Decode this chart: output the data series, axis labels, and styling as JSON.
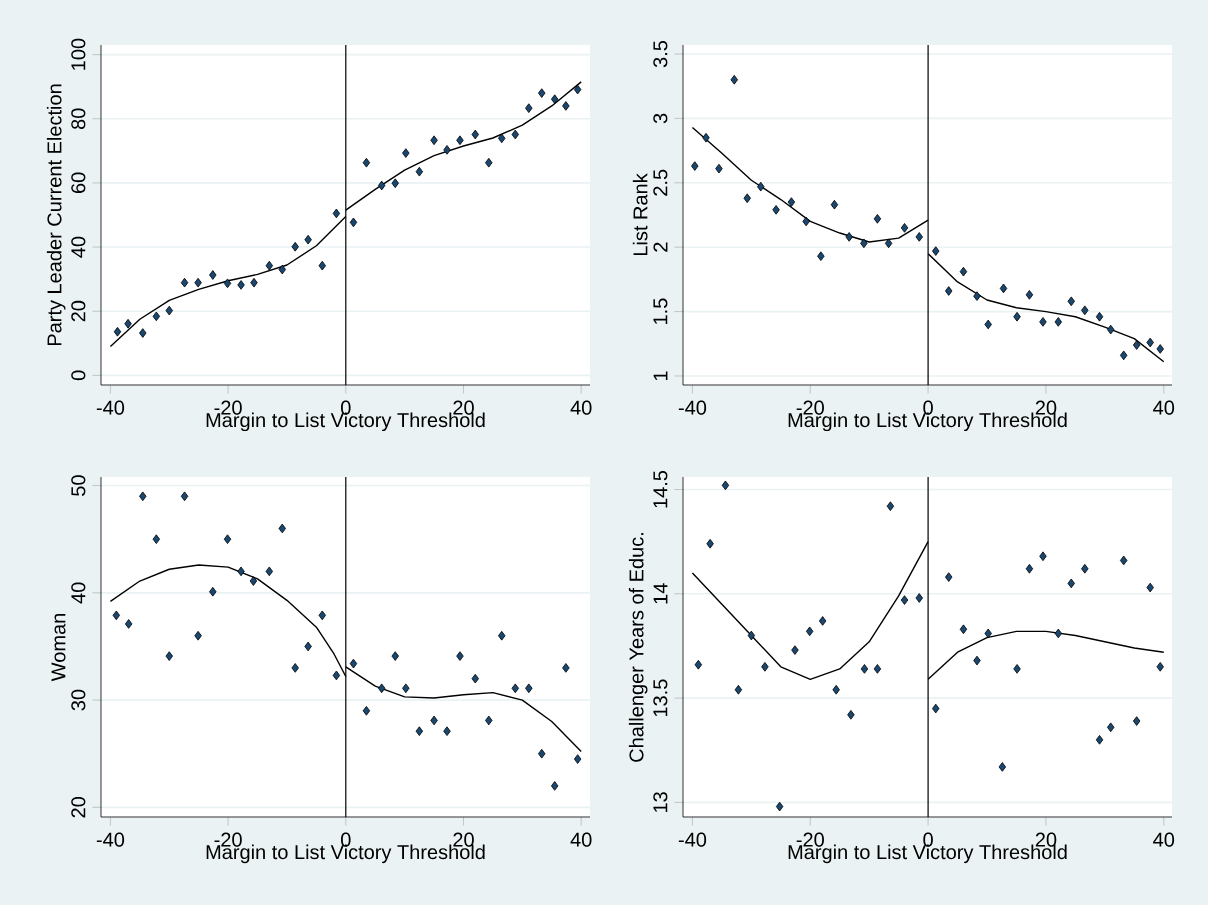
{
  "chart_data": [
    {
      "type": "scatter",
      "xlabel": "Margin to List Victory Threshold",
      "ylabel": "Party Leader Current Election",
      "xlim": [
        -41.6,
        41.5
      ],
      "ylim": [
        -3,
        103
      ],
      "xticks": [
        -40,
        -20,
        0,
        20,
        40
      ],
      "yticks": [
        0,
        20,
        40,
        60,
        80,
        100
      ],
      "grid": "y",
      "ref_lines": [
        {
          "axis": "x",
          "value": 0,
          "color": "#000000"
        }
      ],
      "series": [
        {
          "marker": "diamond",
          "color": "#1a476f",
          "x": [
            -38.8,
            -37,
            -34.5,
            -32.2,
            -30,
            -27.4,
            -25.1,
            -22.6,
            -20.1,
            -17.8,
            -15.6,
            -13,
            -10.8,
            -8.6,
            -6.4,
            -4,
            -1.6,
            1.3,
            3.5,
            6.1,
            8.4,
            10.2,
            12.5,
            15,
            17.2,
            19.4,
            22,
            24.3,
            26.5,
            28.8,
            31.1,
            33.3,
            35.5,
            37.4,
            39.4
          ],
          "values": [
            13.6,
            16.1,
            13.2,
            18.4,
            20.2,
            28.9,
            28.9,
            31.3,
            28.7,
            28.2,
            28.9,
            34.2,
            33,
            40.1,
            42.3,
            34.2,
            50.5,
            47.7,
            66.3,
            59.2,
            59.9,
            69.3,
            63.5,
            73.3,
            70.3,
            73.3,
            75.1,
            66.3,
            73.9,
            75.1,
            83.3,
            88,
            86.1,
            84,
            89.1
          ]
        },
        {
          "type": "line",
          "color": "#000000",
          "x": [
            -40,
            -35,
            -30,
            -25,
            -20,
            -15,
            -10,
            -5,
            0
          ],
          "values": [
            9,
            17.5,
            23.4,
            26.8,
            29.5,
            31.5,
            34.4,
            40.4,
            49.5
          ]
        },
        {
          "type": "line",
          "color": "#000000",
          "x": [
            0,
            5,
            10,
            15,
            20,
            25,
            30,
            35,
            40
          ],
          "values": [
            51.5,
            58,
            64,
            68.5,
            71.5,
            74,
            78,
            84,
            91.5
          ]
        }
      ]
    },
    {
      "type": "scatter",
      "xlabel": "Margin to List Victory Threshold",
      "ylabel": "List Rank",
      "xlim": [
        -41.6,
        41.4
      ],
      "ylim": [
        0.93,
        3.57
      ],
      "xticks": [
        -40,
        -20,
        0,
        20,
        40
      ],
      "yticks": [
        1,
        1.5,
        2,
        2.5,
        3,
        3.5
      ],
      "grid": "y",
      "ref_lines": [
        {
          "axis": "x",
          "value": 0,
          "color": "#000000"
        }
      ],
      "series": [
        {
          "marker": "diamond",
          "color": "#1a476f",
          "x": [
            -39.6,
            -37.7,
            -35.5,
            -32.9,
            -30.7,
            -28.4,
            -25.8,
            -23.2,
            -20.7,
            -18.2,
            -15.9,
            -13.4,
            -10.9,
            -8.6,
            -6.7,
            -4,
            -1.5,
            1.3,
            3.5,
            6,
            8.3,
            10.2,
            12.8,
            15.1,
            17.2,
            19.5,
            22.1,
            24.3,
            26.6,
            29.1,
            31,
            33.2,
            35.4,
            37.7,
            39.4
          ],
          "values": [
            2.63,
            2.85,
            2.61,
            3.3,
            2.38,
            2.47,
            2.29,
            2.35,
            2.2,
            1.93,
            2.33,
            2.08,
            2.03,
            2.22,
            2.03,
            2.15,
            2.08,
            1.97,
            1.66,
            1.81,
            1.62,
            1.4,
            1.68,
            1.46,
            1.63,
            1.42,
            1.42,
            1.58,
            1.51,
            1.46,
            1.36,
            1.16,
            1.24,
            1.26,
            1.21
          ]
        },
        {
          "type": "line",
          "color": "#000000",
          "x": [
            -40,
            -35,
            -30,
            -25,
            -20,
            -15,
            -10,
            -5,
            0
          ],
          "values": [
            2.93,
            2.73,
            2.52,
            2.37,
            2.2,
            2.11,
            2.04,
            2.07,
            2.21
          ]
        },
        {
          "type": "line",
          "color": "#000000",
          "x": [
            0,
            5,
            10,
            15,
            20,
            25,
            30,
            35,
            40
          ],
          "values": [
            1.95,
            1.73,
            1.59,
            1.53,
            1.5,
            1.46,
            1.38,
            1.29,
            1.11
          ]
        }
      ]
    },
    {
      "type": "scatter",
      "xlabel": "Margin to List Victory Threshold",
      "ylabel": "Woman",
      "xlim": [
        -41.6,
        41.5
      ],
      "ylim": [
        19.1,
        50.8
      ],
      "xticks": [
        -40,
        -20,
        0,
        20,
        40
      ],
      "yticks": [
        20,
        30,
        40,
        50
      ],
      "grid": "y",
      "ref_lines": [
        {
          "axis": "x",
          "value": 0,
          "color": "#000000"
        }
      ],
      "series": [
        {
          "marker": "diamond",
          "color": "#1a476f",
          "x": [
            -39,
            -36.9,
            -34.5,
            -32.2,
            -30,
            -27.4,
            -25.1,
            -22.6,
            -20.1,
            -17.8,
            -15.7,
            -13,
            -10.8,
            -8.6,
            -6.4,
            -4,
            -1.6,
            1.3,
            3.5,
            6.1,
            8.4,
            10.2,
            12.5,
            15,
            17.2,
            19.4,
            22,
            24.3,
            26.5,
            28.8,
            31.1,
            33.3,
            35.5,
            37.4,
            39.4
          ],
          "values": [
            37.9,
            37.1,
            49,
            45,
            34.1,
            49,
            36,
            40.1,
            45,
            42,
            41.1,
            42,
            46,
            33,
            35,
            37.9,
            32.3,
            33.4,
            29,
            31.1,
            34.1,
            31.1,
            27.1,
            28.1,
            27.1,
            34.1,
            32,
            28.1,
            36,
            31.1,
            31.1,
            25,
            22,
            33,
            24.5
          ]
        },
        {
          "type": "line",
          "color": "#000000",
          "x": [
            -40,
            -35,
            -30,
            -25,
            -20,
            -15,
            -10,
            -5,
            -2,
            0
          ],
          "values": [
            39.2,
            41.1,
            42.2,
            42.6,
            42.4,
            41.3,
            39.3,
            36.8,
            34.3,
            32.2
          ]
        },
        {
          "type": "line",
          "color": "#000000",
          "x": [
            0,
            5,
            10,
            15,
            20,
            25,
            30,
            35,
            40
          ],
          "values": [
            33.1,
            31.3,
            30.3,
            30.2,
            30.5,
            30.7,
            30,
            28,
            25.2
          ]
        }
      ]
    },
    {
      "type": "scatter",
      "xlabel": "Margin to List Victory Threshold",
      "ylabel": "Challenger Years of Educ.",
      "xlim": [
        -41.6,
        41.4
      ],
      "ylim": [
        12.93,
        14.56
      ],
      "xticks": [
        -40,
        -20,
        0,
        20,
        40
      ],
      "yticks": [
        13,
        13.5,
        14,
        14.5
      ],
      "grid": "y",
      "ref_lines": [
        {
          "axis": "x",
          "value": 0,
          "color": "#000000"
        }
      ],
      "series": [
        {
          "marker": "diamond",
          "color": "#1a476f",
          "x": [
            -39,
            -37,
            -34.4,
            -32.2,
            -30,
            -27.7,
            -25.2,
            -22.6,
            -20.1,
            -17.9,
            -15.6,
            -13.1,
            -10.8,
            -8.6,
            -6.4,
            -4,
            -1.5,
            1.3,
            3.5,
            6,
            8.3,
            10.2,
            12.6,
            15.1,
            17.2,
            19.5,
            22.1,
            24.3,
            26.6,
            29.1,
            31,
            33.2,
            35.4,
            37.7,
            39.4
          ],
          "values": [
            13.66,
            14.24,
            14.52,
            13.54,
            13.8,
            13.65,
            12.98,
            13.73,
            13.82,
            13.87,
            13.54,
            13.42,
            13.64,
            13.64,
            14.42,
            13.97,
            13.98,
            13.45,
            14.08,
            13.83,
            13.68,
            13.81,
            13.17,
            13.64,
            14.12,
            14.18,
            13.81,
            14.05,
            14.12,
            13.3,
            13.36,
            14.16,
            13.39,
            14.03,
            13.65
          ]
        },
        {
          "type": "line",
          "color": "#000000",
          "x": [
            -40,
            -35,
            -30,
            -25,
            -20,
            -15,
            -10,
            -5,
            0
          ],
          "values": [
            14.1,
            13.95,
            13.8,
            13.65,
            13.59,
            13.64,
            13.77,
            13.99,
            14.25
          ]
        },
        {
          "type": "line",
          "color": "#000000",
          "x": [
            0,
            5,
            10,
            15,
            20,
            25,
            30,
            35,
            40
          ],
          "values": [
            13.59,
            13.72,
            13.79,
            13.82,
            13.82,
            13.8,
            13.77,
            13.74,
            13.72
          ]
        }
      ]
    }
  ]
}
